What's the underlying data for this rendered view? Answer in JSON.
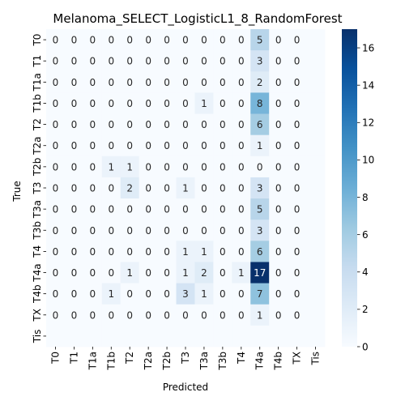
{
  "chart_data": {
    "type": "heatmap",
    "title": "Melanoma_SELECT_LogisticL1_8_RandomForest",
    "xlabel": "Predicted",
    "ylabel": "True",
    "row_labels": [
      "T0",
      "T1",
      "T1a",
      "T1b",
      "T2",
      "T2a",
      "T2b",
      "T3",
      "T3a",
      "T3b",
      "T4",
      "T4a",
      "T4b",
      "TX",
      "Tis"
    ],
    "col_labels": [
      "T0",
      "T1",
      "T1a",
      "T1b",
      "T2",
      "T2a",
      "T2b",
      "T3",
      "T3a",
      "T3b",
      "T4",
      "T4a",
      "T4b",
      "TX",
      "Tis"
    ],
    "annotated_rows": 14,
    "annotated_cols": 14,
    "values": [
      [
        0,
        0,
        0,
        0,
        0,
        0,
        0,
        0,
        0,
        0,
        0,
        5,
        0,
        0,
        0
      ],
      [
        0,
        0,
        0,
        0,
        0,
        0,
        0,
        0,
        0,
        0,
        0,
        3,
        0,
        0,
        0
      ],
      [
        0,
        0,
        0,
        0,
        0,
        0,
        0,
        0,
        0,
        0,
        0,
        2,
        0,
        0,
        0
      ],
      [
        0,
        0,
        0,
        0,
        0,
        0,
        0,
        0,
        1,
        0,
        0,
        8,
        0,
        0,
        0
      ],
      [
        0,
        0,
        0,
        0,
        0,
        0,
        0,
        0,
        0,
        0,
        0,
        6,
        0,
        0,
        0
      ],
      [
        0,
        0,
        0,
        0,
        0,
        0,
        0,
        0,
        0,
        0,
        0,
        1,
        0,
        0,
        0
      ],
      [
        0,
        0,
        0,
        1,
        1,
        0,
        0,
        0,
        0,
        0,
        0,
        0,
        0,
        0,
        0
      ],
      [
        0,
        0,
        0,
        0,
        2,
        0,
        0,
        1,
        0,
        0,
        0,
        3,
        0,
        0,
        0
      ],
      [
        0,
        0,
        0,
        0,
        0,
        0,
        0,
        0,
        0,
        0,
        0,
        5,
        0,
        0,
        0
      ],
      [
        0,
        0,
        0,
        0,
        0,
        0,
        0,
        0,
        0,
        0,
        0,
        3,
        0,
        0,
        0
      ],
      [
        0,
        0,
        0,
        0,
        0,
        0,
        0,
        1,
        1,
        0,
        0,
        6,
        0,
        0,
        0
      ],
      [
        0,
        0,
        0,
        0,
        1,
        0,
        0,
        1,
        2,
        0,
        1,
        17,
        0,
        0,
        0
      ],
      [
        0,
        0,
        0,
        1,
        0,
        0,
        0,
        3,
        1,
        0,
        0,
        7,
        0,
        0,
        0
      ],
      [
        0,
        0,
        0,
        0,
        0,
        0,
        0,
        0,
        0,
        0,
        0,
        1,
        0,
        0,
        0
      ],
      [
        0,
        0,
        0,
        0,
        0,
        0,
        0,
        0,
        0,
        0,
        0,
        0,
        0,
        0,
        0
      ]
    ],
    "vmin": 0,
    "vmax": 17,
    "colormap": "Blues",
    "colorbar_ticks": [
      0,
      2,
      4,
      6,
      8,
      10,
      12,
      14,
      16
    ]
  }
}
